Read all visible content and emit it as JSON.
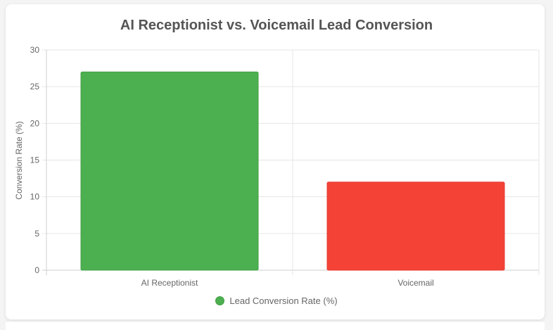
{
  "chart_data": {
    "type": "bar",
    "title": "AI Receptionist vs. Voicemail Lead Conversion",
    "xlabel": "",
    "ylabel": "Conversion Rate (%)",
    "categories": [
      "AI Receptionist",
      "Voicemail"
    ],
    "series": [
      {
        "name": "Lead Conversion Rate (%)",
        "values": [
          27,
          12
        ],
        "colors": [
          "#4caf50",
          "#f44336"
        ],
        "border_colors": [
          "#43a047",
          "#e53935"
        ]
      }
    ],
    "ylim": [
      0,
      30
    ],
    "yticks": [
      "0",
      "5",
      "10",
      "15",
      "20",
      "25",
      "30"
    ],
    "grid": true,
    "legend_position": "bottom"
  }
}
